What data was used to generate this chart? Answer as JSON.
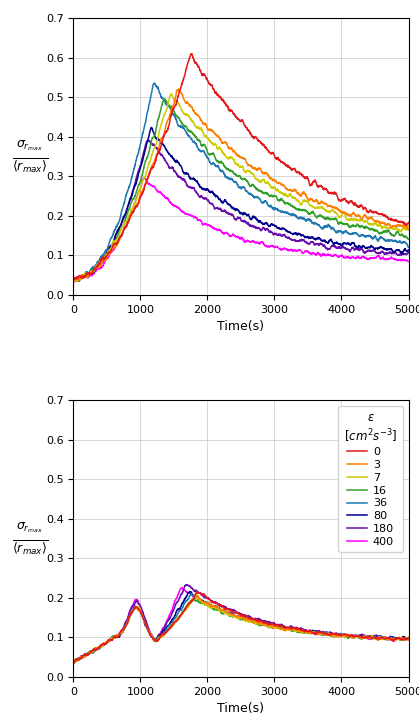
{
  "ylabel_top": "$\\sigma_{r_{max}}$\n$\\overline{\\langle r_{max}\\rangle}$",
  "xlabel": "Time(s)",
  "xlim": [
    0,
    5000
  ],
  "ylim": [
    0.0,
    0.7
  ],
  "yticks": [
    0.0,
    0.1,
    0.2,
    0.3,
    0.4,
    0.5,
    0.6,
    0.7
  ],
  "xticks": [
    0,
    1000,
    2000,
    3000,
    4000,
    5000
  ],
  "epsilon_labels": [
    "0",
    "3",
    "7",
    "16",
    "36",
    "80",
    "180",
    "400"
  ],
  "epsilon_colors": [
    "#e31a1c",
    "#ff7f00",
    "#cccc00",
    "#33a02c",
    "#1f78b4",
    "#00008B",
    "#6a0dad",
    "#ff00ff"
  ],
  "legend_title": "$\\varepsilon$\n$[cm^2s^{-3}]$",
  "figsize": [
    4.19,
    7.24
  ],
  "dpi": 100
}
